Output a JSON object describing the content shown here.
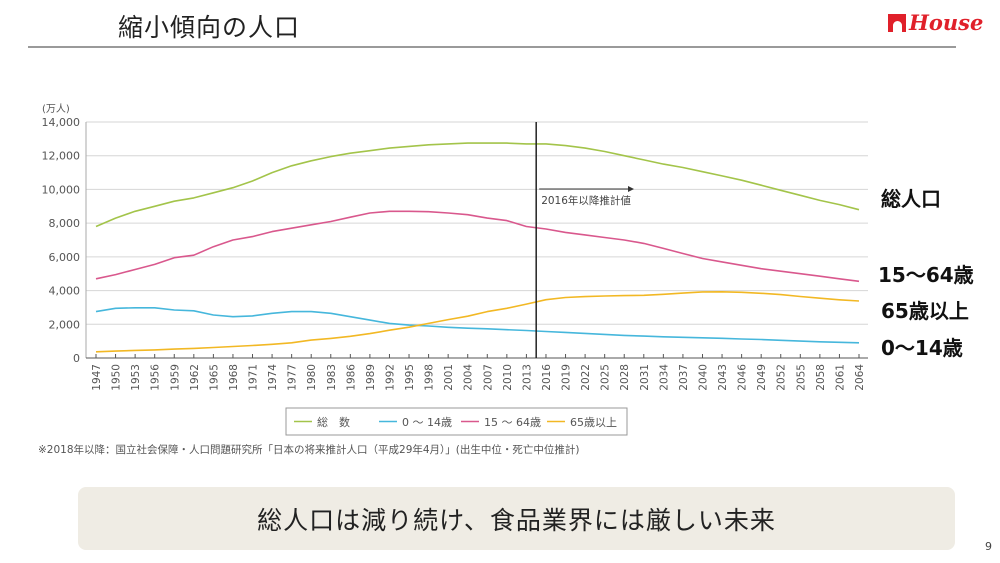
{
  "header": {
    "title": "縮小傾向の人口",
    "logo_text": "House"
  },
  "chart_data": {
    "type": "line",
    "ylabel": "(万人)",
    "ylim": [
      0,
      14000
    ],
    "yticks": [
      "0",
      "2,000",
      "4,000",
      "6,000",
      "8,000",
      "10,000",
      "12,000",
      "14,000"
    ],
    "grid": true,
    "x": [
      1947,
      1950,
      1953,
      1956,
      1959,
      1962,
      1965,
      1968,
      1971,
      1974,
      1977,
      1980,
      1983,
      1986,
      1989,
      1992,
      1995,
      1998,
      2001,
      2004,
      2007,
      2010,
      2013,
      2016,
      2019,
      2022,
      2025,
      2028,
      2031,
      2034,
      2037,
      2040,
      2043,
      2046,
      2049,
      2052,
      2055,
      2058,
      2061,
      2064
    ],
    "projection_marker": {
      "year": 2014.5,
      "label": "2016年以降推計値"
    },
    "legend_position": "bottom",
    "series": [
      {
        "name": "総　数",
        "color": "#a3c44a",
        "values": [
          7800,
          8300,
          8700,
          9000,
          9300,
          9500,
          9800,
          10100,
          10500,
          11000,
          11400,
          11700,
          11950,
          12150,
          12300,
          12450,
          12550,
          12650,
          12700,
          12750,
          12750,
          12750,
          12700,
          12700,
          12600,
          12450,
          12250,
          12000,
          11750,
          11500,
          11300,
          11050,
          10800,
          10550,
          10250,
          9950,
          9650,
          9350,
          9100,
          8800
        ]
      },
      {
        "name": "0 ～ 14歳",
        "color": "#46b7dc",
        "values": [
          2750,
          2950,
          2980,
          2980,
          2850,
          2800,
          2550,
          2450,
          2500,
          2650,
          2750,
          2750,
          2650,
          2450,
          2250,
          2050,
          1950,
          1900,
          1820,
          1770,
          1730,
          1680,
          1630,
          1570,
          1520,
          1460,
          1400,
          1340,
          1300,
          1260,
          1230,
          1200,
          1170,
          1130,
          1100,
          1050,
          1000,
          960,
          930,
          900
        ]
      },
      {
        "name": "15 ～ 64歳",
        "color": "#d9588d",
        "values": [
          4700,
          4950,
          5250,
          5550,
          5950,
          6100,
          6600,
          7000,
          7200,
          7500,
          7700,
          7900,
          8100,
          8350,
          8600,
          8700,
          8700,
          8680,
          8600,
          8500,
          8300,
          8150,
          7800,
          7650,
          7450,
          7300,
          7150,
          7000,
          6800,
          6500,
          6200,
          5900,
          5700,
          5500,
          5300,
          5150,
          5000,
          4850,
          4700,
          4550
        ]
      },
      {
        "name": "65歳以上",
        "color": "#f2b824",
        "values": [
          370,
          410,
          450,
          480,
          530,
          570,
          620,
          680,
          740,
          810,
          900,
          1060,
          1160,
          1290,
          1450,
          1650,
          1830,
          2050,
          2280,
          2480,
          2750,
          2950,
          3200,
          3460,
          3590,
          3640,
          3680,
          3700,
          3720,
          3780,
          3850,
          3920,
          3930,
          3900,
          3840,
          3760,
          3650,
          3550,
          3450,
          3380
        ]
      }
    ],
    "footnote": "※2018年以降：国立社会保障・人口問題研究所「日本の将来推計人口（平成29年4月）」(出生中位・死亡中位推計)"
  },
  "side_labels": {
    "total": "総人口",
    "working": "15〜64歳",
    "elderly": "65歳以上",
    "children": "0〜14歳"
  },
  "summary": "総人口は減り続け、食品業界には厳しい未来",
  "page_number": "9"
}
